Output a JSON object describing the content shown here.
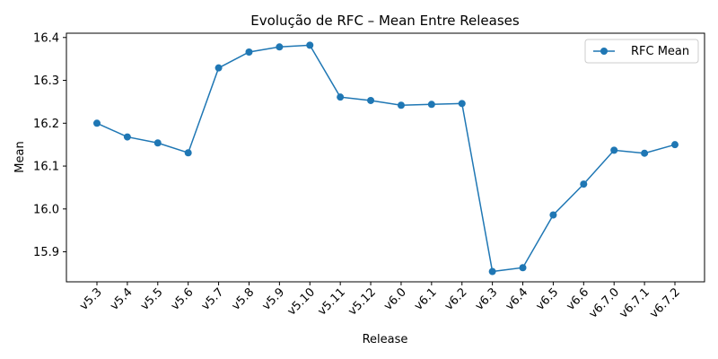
{
  "chart_data": {
    "type": "line",
    "title": "Evolução de RFC – Mean Entre Releases",
    "xlabel": "Release",
    "ylabel": "Mean",
    "categories": [
      "v5.3",
      "v5.4",
      "v5.5",
      "v5.6",
      "v5.7",
      "v5.8",
      "v5.9",
      "v5.10",
      "v5.11",
      "v5.12",
      "v6.0",
      "v6.1",
      "v6.2",
      "v6.3",
      "v6.4",
      "v6.5",
      "v6.6",
      "v6.7.0",
      "v6.7.1",
      "v6.7.2"
    ],
    "series": [
      {
        "name": "RFC Mean",
        "color": "#1f77b4",
        "values": [
          16.2,
          16.168,
          16.154,
          16.131,
          16.329,
          16.366,
          16.378,
          16.382,
          16.261,
          16.253,
          16.242,
          16.244,
          16.246,
          15.854,
          15.863,
          15.986,
          16.058,
          16.137,
          16.13,
          16.15
        ]
      }
    ],
    "yticks": [
      15.9,
      16.0,
      16.1,
      16.2,
      16.3,
      16.4
    ],
    "ylim": [
      15.83,
      16.41
    ],
    "grid": false,
    "legend_position": "top-right"
  }
}
